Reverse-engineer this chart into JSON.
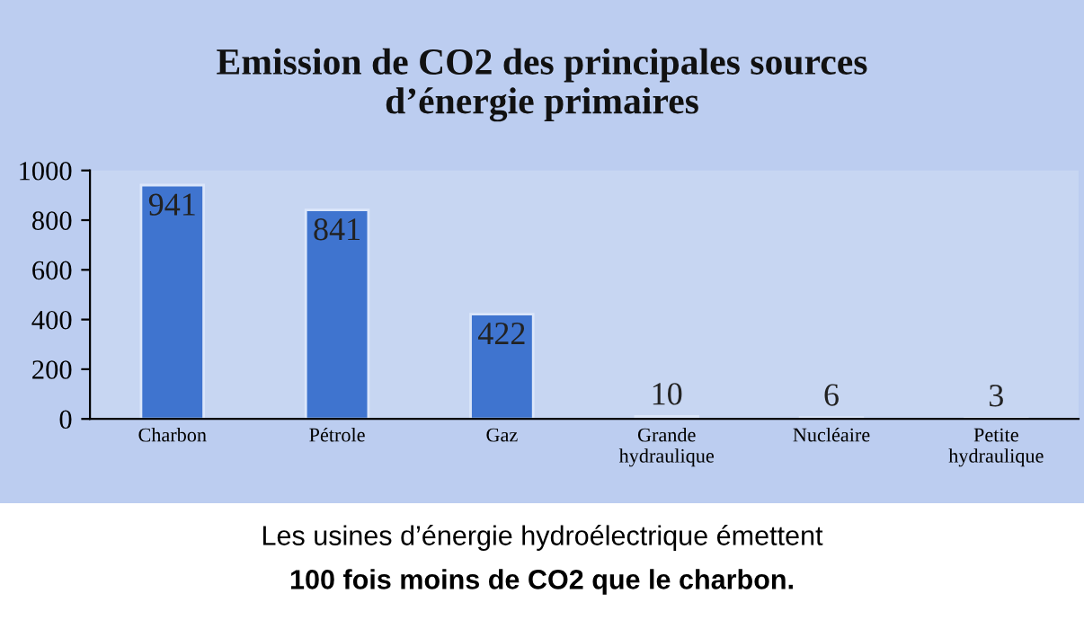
{
  "chart_data": {
    "type": "bar",
    "title": "Emission de CO2 des principales sources\nd’énergie primaires",
    "categories": [
      "Charbon",
      "Pétrole",
      "Gaz",
      "Grande\nhydraulique",
      "Nucléaire",
      "Petite\nhydraulique"
    ],
    "values": [
      941,
      841,
      422,
      10,
      6,
      3
    ],
    "color": "#3f74cf",
    "ylim": [
      0,
      1000
    ],
    "yticks": [
      0,
      200,
      400,
      600,
      800,
      1000
    ],
    "grid": false,
    "data_labels": true,
    "annotations": [
      "Les usines d’énergie hydroélectrique émettent",
      "100 fois moins de CO2 que le charbon."
    ]
  }
}
